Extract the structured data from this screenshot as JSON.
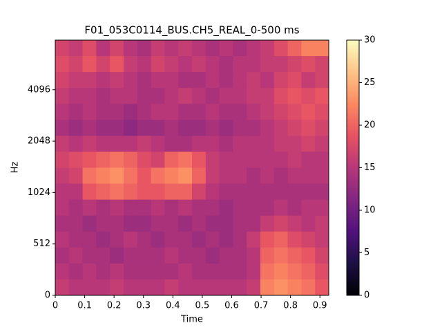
{
  "chart_data": {
    "type": "heatmap",
    "title": "F01_053C0114_BUS.CH5_REAL_0-500 ms",
    "xlabel": "Time",
    "ylabel": "Hz",
    "xlim": [
      0,
      0.93
    ],
    "xticks": [
      0,
      0.1,
      0.2,
      0.3,
      0.4,
      0.5,
      0.6,
      0.7,
      0.8,
      0.9
    ],
    "ylim": [
      0,
      8000
    ],
    "yticks": [
      0,
      512,
      1024,
      2048,
      4096
    ],
    "yscale": {
      "type": "symlog",
      "base": 2,
      "linthresh": 1024,
      "linscale": 2
    },
    "clim": [
      0,
      30
    ],
    "cticks": [
      0,
      5,
      10,
      15,
      20,
      25,
      30
    ],
    "colormap": [
      "#000004",
      "#1c1044",
      "#51127c",
      "#822681",
      "#b73779",
      "#e75263",
      "#fc8961",
      "#fec488",
      "#fcfdbf"
    ],
    "z": [
      [
        17,
        16,
        18,
        15,
        17,
        15,
        14,
        16,
        15,
        16,
        15,
        14,
        15,
        14,
        15,
        16,
        18,
        20,
        22,
        22
      ],
      [
        18,
        17,
        19,
        17,
        19,
        16,
        15,
        17,
        16,
        15,
        16,
        15,
        14,
        15,
        15,
        16,
        16,
        17,
        18,
        17
      ],
      [
        17,
        16,
        16,
        15,
        16,
        15,
        14,
        15,
        15,
        14,
        14,
        15,
        14,
        15,
        16,
        15,
        17,
        18,
        16,
        17
      ],
      [
        16,
        15,
        15,
        14,
        15,
        15,
        14,
        14,
        15,
        16,
        15,
        14,
        15,
        15,
        16,
        16,
        18,
        19,
        18,
        19
      ],
      [
        15,
        14,
        15,
        14,
        14,
        13,
        14,
        15,
        15,
        14,
        14,
        15,
        14,
        14,
        15,
        16,
        17,
        18,
        19,
        18
      ],
      [
        14,
        13,
        14,
        13,
        13,
        12,
        13,
        13,
        14,
        13,
        13,
        14,
        13,
        14,
        14,
        15,
        16,
        17,
        18,
        17
      ],
      [
        16,
        15,
        16,
        15,
        15,
        15,
        16,
        15,
        14,
        14,
        15,
        15,
        14,
        15,
        15,
        15,
        16,
        16,
        17,
        16
      ],
      [
        17,
        18,
        19,
        20,
        21,
        20,
        18,
        17,
        20,
        21,
        19,
        16,
        15,
        15,
        15,
        15,
        15,
        16,
        15,
        15
      ],
      [
        16,
        17,
        21,
        22,
        23,
        21,
        19,
        21,
        22,
        23,
        20,
        16,
        15,
        15,
        14,
        15,
        14,
        15,
        15,
        15
      ],
      [
        15,
        15,
        19,
        20,
        21,
        20,
        19,
        19,
        20,
        20,
        17,
        15,
        14,
        14,
        14,
        14,
        14,
        14,
        14,
        14
      ],
      [
        15,
        14,
        15,
        14,
        15,
        14,
        14,
        15,
        14,
        15,
        14,
        14,
        13,
        14,
        14,
        14,
        15,
        14,
        15,
        15
      ],
      [
        14,
        14,
        13,
        14,
        14,
        13,
        13,
        14,
        14,
        13,
        14,
        13,
        13,
        14,
        14,
        16,
        17,
        16,
        15,
        16
      ],
      [
        15,
        14,
        14,
        13,
        14,
        15,
        14,
        13,
        14,
        14,
        13,
        14,
        13,
        14,
        16,
        19,
        20,
        18,
        17,
        16
      ],
      [
        14,
        15,
        14,
        14,
        13,
        14,
        14,
        14,
        15,
        14,
        14,
        13,
        14,
        14,
        15,
        20,
        21,
        20,
        19,
        17
      ],
      [
        15,
        14,
        15,
        14,
        15,
        14,
        14,
        14,
        14,
        15,
        14,
        14,
        14,
        14,
        15,
        21,
        22,
        21,
        20,
        18
      ],
      [
        16,
        15,
        15,
        15,
        16,
        15,
        15,
        15,
        16,
        15,
        15,
        15,
        15,
        15,
        16,
        22,
        23,
        22,
        21,
        19
      ]
    ]
  }
}
